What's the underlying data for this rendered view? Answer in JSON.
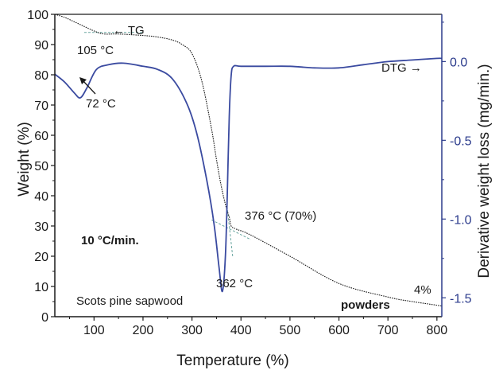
{
  "chart_data": {
    "type": "line",
    "xlabel": "Temperature (%)",
    "ylabel_left": "Weight  (%)",
    "ylabel_right": "Derivative weight loss (mg/min.)",
    "xlim": [
      20,
      810
    ],
    "ylim_left": [
      0,
      100
    ],
    "ylim_right": [
      -1.62,
      0.3
    ],
    "x_ticks": [
      100,
      200,
      300,
      400,
      500,
      600,
      700,
      800
    ],
    "y_ticks_left": [
      0,
      10,
      20,
      30,
      40,
      50,
      60,
      70,
      80,
      90,
      100
    ],
    "y_ticks_right": [
      "-1.5",
      "-1.0",
      "-0.5",
      "0.0"
    ],
    "y_ticks_right_values": [
      -1.5,
      -1.0,
      -0.5,
      0.0
    ],
    "colors": {
      "tg": "#1a1a1a",
      "dtg": "#3a4aa0",
      "tangent": "#6aa6a0",
      "axis_right": "#2b3b8c"
    },
    "series": [
      {
        "name": "TG",
        "axis": "left",
        "x": [
          20,
          40,
          60,
          80,
          100,
          120,
          150,
          200,
          230,
          260,
          280,
          300,
          320,
          340,
          350,
          360,
          370,
          376,
          380,
          390,
          420,
          500,
          600,
          700,
          750,
          800,
          810
        ],
        "y": [
          100,
          99,
          97.5,
          96,
          94.5,
          93.5,
          93.5,
          93,
          92.5,
          91.5,
          90,
          87,
          78,
          62,
          52,
          43,
          36,
          33,
          30,
          29,
          27,
          20,
          11,
          6.5,
          5,
          3.8,
          3.5
        ]
      },
      {
        "name": "DTG",
        "axis": "right",
        "x": [
          20,
          40,
          60,
          72,
          85,
          105,
          130,
          160,
          200,
          230,
          260,
          290,
          310,
          330,
          345,
          355,
          362,
          368,
          372,
          376,
          380,
          385,
          400,
          450,
          500,
          550,
          600,
          650,
          700,
          750,
          800,
          810
        ],
        "y": [
          -0.08,
          -0.13,
          -0.2,
          -0.23,
          -0.17,
          -0.05,
          -0.02,
          -0.01,
          -0.03,
          -0.05,
          -0.11,
          -0.27,
          -0.46,
          -0.75,
          -1.03,
          -1.3,
          -1.46,
          -1.25,
          -0.85,
          -0.35,
          -0.09,
          -0.03,
          -0.03,
          -0.03,
          -0.03,
          -0.04,
          -0.04,
          -0.02,
          0.0,
          0.01,
          0.02,
          0.02
        ]
      }
    ],
    "annotations": {
      "tg_label": "← TG",
      "dtg_label": "DTG →",
      "peak_105": "105 °C",
      "peak_72": "72 °C",
      "onset": "376 °C (70%)",
      "peak_362": "362 °C",
      "rate": "10 °C/min.",
      "sample": "Scots pine sapwood",
      "residue": "4%",
      "form": "powders"
    }
  }
}
